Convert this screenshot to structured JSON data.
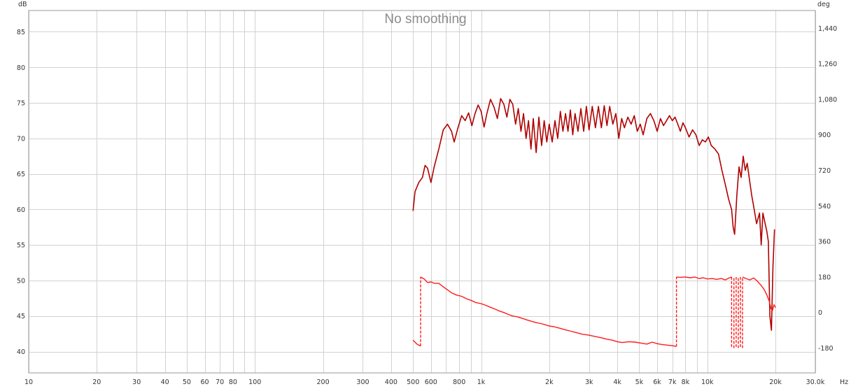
{
  "chart_data": {
    "type": "line",
    "title": "No smoothing",
    "x_unit": "Hz",
    "y_left_unit": "dB",
    "y_right_unit": "deg",
    "x_scale": "log",
    "xlim": [
      10,
      30000
    ],
    "ylim_left": [
      37,
      88
    ],
    "ylim_right": [
      -306,
      1530
    ],
    "grid": true,
    "x_ticks": [
      {
        "value": 10,
        "label": "10"
      },
      {
        "value": 20,
        "label": "20"
      },
      {
        "value": 30,
        "label": "30"
      },
      {
        "value": 40,
        "label": "40"
      },
      {
        "value": 50,
        "label": "50"
      },
      {
        "value": 60,
        "label": "60"
      },
      {
        "value": 70,
        "label": "70"
      },
      {
        "value": 80,
        "label": "80"
      },
      {
        "value": 100,
        "label": "100"
      },
      {
        "value": 200,
        "label": "200"
      },
      {
        "value": 300,
        "label": "300"
      },
      {
        "value": 400,
        "label": "400"
      },
      {
        "value": 500,
        "label": "500"
      },
      {
        "value": 600,
        "label": "600"
      },
      {
        "value": 800,
        "label": "800"
      },
      {
        "value": 1000,
        "label": "1k"
      },
      {
        "value": 2000,
        "label": "2k"
      },
      {
        "value": 3000,
        "label": "3k"
      },
      {
        "value": 4000,
        "label": "4k"
      },
      {
        "value": 5000,
        "label": "5k"
      },
      {
        "value": 6000,
        "label": "6k"
      },
      {
        "value": 7000,
        "label": "7k"
      },
      {
        "value": 8000,
        "label": "8k"
      },
      {
        "value": 10000,
        "label": "10k"
      },
      {
        "value": 20000,
        "label": "20k"
      },
      {
        "value": 30000,
        "label": "30.0k"
      }
    ],
    "x_grid_values": [
      10,
      20,
      30,
      40,
      50,
      60,
      70,
      80,
      90,
      100,
      200,
      300,
      400,
      500,
      600,
      700,
      800,
      900,
      1000,
      2000,
      3000,
      4000,
      5000,
      6000,
      7000,
      8000,
      9000,
      10000,
      20000,
      30000
    ],
    "y_left_ticks": [
      40,
      45,
      50,
      55,
      60,
      65,
      70,
      75,
      80,
      85
    ],
    "y_right_ticks": [
      {
        "value": -180,
        "label": "-180"
      },
      {
        "value": 0,
        "label": "0"
      },
      {
        "value": 180,
        "label": "180"
      },
      {
        "value": 360,
        "label": "360"
      },
      {
        "value": 540,
        "label": "540"
      },
      {
        "value": 720,
        "label": "720"
      },
      {
        "value": 900,
        "label": "900"
      },
      {
        "value": 1080,
        "label": "1,080"
      },
      {
        "value": 1260,
        "label": "1,260"
      },
      {
        "value": 1440,
        "label": "1,440"
      }
    ],
    "series": [
      {
        "kind": "magnitude",
        "axis": "left",
        "color": "#b00000",
        "style": "solid",
        "points": [
          [
            500,
            59.8
          ],
          [
            510,
            62.5
          ],
          [
            530,
            63.8
          ],
          [
            550,
            64.5
          ],
          [
            565,
            66.2
          ],
          [
            580,
            65.8
          ],
          [
            600,
            63.8
          ],
          [
            620,
            66.0
          ],
          [
            650,
            68.5
          ],
          [
            680,
            71.2
          ],
          [
            710,
            72.0
          ],
          [
            740,
            71.0
          ],
          [
            760,
            69.5
          ],
          [
            790,
            71.5
          ],
          [
            820,
            73.2
          ],
          [
            850,
            72.5
          ],
          [
            880,
            73.6
          ],
          [
            910,
            71.8
          ],
          [
            940,
            73.5
          ],
          [
            970,
            74.7
          ],
          [
            1000,
            73.8
          ],
          [
            1030,
            71.6
          ],
          [
            1060,
            73.5
          ],
          [
            1100,
            75.5
          ],
          [
            1140,
            74.4
          ],
          [
            1180,
            72.8
          ],
          [
            1220,
            75.6
          ],
          [
            1260,
            74.8
          ],
          [
            1300,
            73.0
          ],
          [
            1340,
            75.5
          ],
          [
            1380,
            74.8
          ],
          [
            1420,
            72.0
          ],
          [
            1460,
            74.2
          ],
          [
            1500,
            71.0
          ],
          [
            1540,
            73.5
          ],
          [
            1580,
            70.0
          ],
          [
            1620,
            72.5
          ],
          [
            1660,
            68.5
          ],
          [
            1700,
            72.8
          ],
          [
            1750,
            68.0
          ],
          [
            1800,
            73.0
          ],
          [
            1850,
            69.0
          ],
          [
            1900,
            72.5
          ],
          [
            1950,
            69.5
          ],
          [
            2000,
            72.0
          ],
          [
            2060,
            69.5
          ],
          [
            2120,
            72.5
          ],
          [
            2180,
            70.0
          ],
          [
            2240,
            73.8
          ],
          [
            2300,
            71.0
          ],
          [
            2360,
            73.5
          ],
          [
            2420,
            71.0
          ],
          [
            2480,
            74.0
          ],
          [
            2540,
            70.5
          ],
          [
            2600,
            73.5
          ],
          [
            2680,
            71.0
          ],
          [
            2760,
            74.2
          ],
          [
            2840,
            71.0
          ],
          [
            2920,
            74.5
          ],
          [
            3000,
            71.2
          ],
          [
            3100,
            74.5
          ],
          [
            3200,
            71.5
          ],
          [
            3300,
            74.5
          ],
          [
            3400,
            71.5
          ],
          [
            3500,
            74.6
          ],
          [
            3600,
            71.8
          ],
          [
            3700,
            74.5
          ],
          [
            3820,
            72.0
          ],
          [
            3940,
            73.5
          ],
          [
            4060,
            70.0
          ],
          [
            4180,
            72.8
          ],
          [
            4300,
            71.5
          ],
          [
            4450,
            73.0
          ],
          [
            4600,
            72.0
          ],
          [
            4750,
            73.2
          ],
          [
            4900,
            71.0
          ],
          [
            5050,
            72.0
          ],
          [
            5200,
            70.5
          ],
          [
            5400,
            72.8
          ],
          [
            5600,
            73.5
          ],
          [
            5800,
            72.5
          ],
          [
            6000,
            71.0
          ],
          [
            6200,
            72.8
          ],
          [
            6400,
            71.8
          ],
          [
            6600,
            72.5
          ],
          [
            6800,
            73.2
          ],
          [
            7000,
            72.5
          ],
          [
            7200,
            73.0
          ],
          [
            7400,
            72.0
          ],
          [
            7600,
            71.0
          ],
          [
            7800,
            72.2
          ],
          [
            8000,
            71.5
          ],
          [
            8300,
            70.2
          ],
          [
            8600,
            71.2
          ],
          [
            8900,
            70.5
          ],
          [
            9200,
            69.0
          ],
          [
            9500,
            69.8
          ],
          [
            9800,
            69.5
          ],
          [
            10100,
            70.2
          ],
          [
            10400,
            69.0
          ],
          [
            10800,
            68.5
          ],
          [
            11200,
            67.8
          ],
          [
            11600,
            65.5
          ],
          [
            12000,
            63.5
          ],
          [
            12400,
            61.5
          ],
          [
            12800,
            60.0
          ],
          [
            13000,
            57.5
          ],
          [
            13200,
            56.5
          ],
          [
            13500,
            62.0
          ],
          [
            13800,
            66.0
          ],
          [
            14100,
            64.5
          ],
          [
            14400,
            67.5
          ],
          [
            14700,
            65.5
          ],
          [
            15000,
            66.5
          ],
          [
            15300,
            64.5
          ],
          [
            15700,
            62.0
          ],
          [
            16000,
            60.5
          ],
          [
            16500,
            58.0
          ],
          [
            17000,
            59.5
          ],
          [
            17300,
            55.0
          ],
          [
            17600,
            59.5
          ],
          [
            18000,
            58.0
          ],
          [
            18300,
            57.0
          ],
          [
            18600,
            55.5
          ],
          [
            18900,
            45.0
          ],
          [
            19200,
            43.0
          ],
          [
            19500,
            52.0
          ],
          [
            19800,
            57.2
          ]
        ]
      },
      {
        "kind": "phase",
        "axis": "right",
        "color": "#ff1a1a",
        "style": "solid",
        "segments": [
          {
            "dashed": false,
            "points": [
              [
                500,
                -140
              ],
              [
                520,
                -160
              ],
              [
                540,
                -170
              ]
            ]
          },
          {
            "dashed": true,
            "points": [
              [
                540,
                -170
              ],
              [
                540,
                180
              ]
            ]
          },
          {
            "dashed": false,
            "points": [
              [
                540,
                180
              ],
              [
                560,
                170
              ],
              [
                580,
                152
              ],
              [
                600,
                155
              ],
              [
                620,
                148
              ],
              [
                650,
                148
              ],
              [
                680,
                130
              ],
              [
                710,
                115
              ],
              [
                740,
                100
              ],
              [
                780,
                88
              ],
              [
                820,
                82
              ],
              [
                860,
                70
              ],
              [
                900,
                62
              ],
              [
                950,
                50
              ],
              [
                1000,
                45
              ],
              [
                1050,
                36
              ],
              [
                1100,
                26
              ],
              [
                1150,
                18
              ],
              [
                1200,
                8
              ],
              [
                1260,
                0
              ],
              [
                1320,
                -10
              ],
              [
                1380,
                -18
              ],
              [
                1450,
                -22
              ],
              [
                1520,
                -30
              ],
              [
                1600,
                -38
              ],
              [
                1680,
                -45
              ],
              [
                1760,
                -52
              ],
              [
                1840,
                -56
              ],
              [
                1920,
                -62
              ],
              [
                2000,
                -68
              ],
              [
                2100,
                -72
              ],
              [
                2200,
                -78
              ],
              [
                2300,
                -84
              ],
              [
                2400,
                -90
              ],
              [
                2500,
                -95
              ],
              [
                2600,
                -100
              ],
              [
                2700,
                -105
              ],
              [
                2800,
                -110
              ],
              [
                3000,
                -115
              ],
              [
                3200,
                -122
              ],
              [
                3400,
                -128
              ],
              [
                3600,
                -135
              ],
              [
                3800,
                -140
              ],
              [
                4000,
                -148
              ],
              [
                4200,
                -152
              ],
              [
                4500,
                -148
              ],
              [
                4800,
                -150
              ],
              [
                5100,
                -155
              ],
              [
                5400,
                -160
              ],
              [
                5700,
                -150
              ],
              [
                6000,
                -158
              ],
              [
                6300,
                -162
              ],
              [
                6600,
                -165
              ],
              [
                7000,
                -168
              ],
              [
                7300,
                -172
              ]
            ]
          },
          {
            "dashed": true,
            "points": [
              [
                7300,
                -172
              ],
              [
                7300,
                180
              ]
            ]
          },
          {
            "dashed": false,
            "points": [
              [
                7300,
                180
              ],
              [
                7600,
                178
              ],
              [
                8000,
                180
              ],
              [
                8400,
                176
              ],
              [
                8800,
                180
              ],
              [
                9200,
                172
              ],
              [
                9600,
                176
              ],
              [
                10000,
                170
              ],
              [
                10500,
                172
              ],
              [
                11000,
                168
              ],
              [
                11500,
                172
              ],
              [
                12000,
                165
              ],
              [
                12400,
                174
              ],
              [
                12800,
                180
              ]
            ]
          },
          {
            "dashed": true,
            "points": [
              [
                12800,
                180
              ],
              [
                12800,
                -180
              ]
            ]
          },
          {
            "dashed": true,
            "points": [
              [
                13100,
                -180
              ],
              [
                13100,
                180
              ]
            ]
          },
          {
            "dashed": true,
            "points": [
              [
                13400,
                180
              ],
              [
                13400,
                -180
              ]
            ]
          },
          {
            "dashed": true,
            "points": [
              [
                13700,
                -180
              ],
              [
                13700,
                180
              ]
            ]
          },
          {
            "dashed": true,
            "points": [
              [
                14000,
                180
              ],
              [
                14000,
                -180
              ]
            ]
          },
          {
            "dashed": true,
            "points": [
              [
                14300,
                -180
              ],
              [
                14300,
                180
              ]
            ]
          },
          {
            "dashed": false,
            "points": [
              [
                14300,
                180
              ],
              [
                14800,
                172
              ],
              [
                15400,
                165
              ],
              [
                16000,
                175
              ],
              [
                16600,
                160
              ],
              [
                17200,
                140
              ],
              [
                17800,
                118
              ],
              [
                18300,
                90
              ],
              [
                18800,
                55
              ],
              [
                19100,
                20
              ],
              [
                19400,
                10
              ],
              [
                19700,
                40
              ],
              [
                20000,
                25
              ]
            ]
          }
        ]
      }
    ]
  }
}
